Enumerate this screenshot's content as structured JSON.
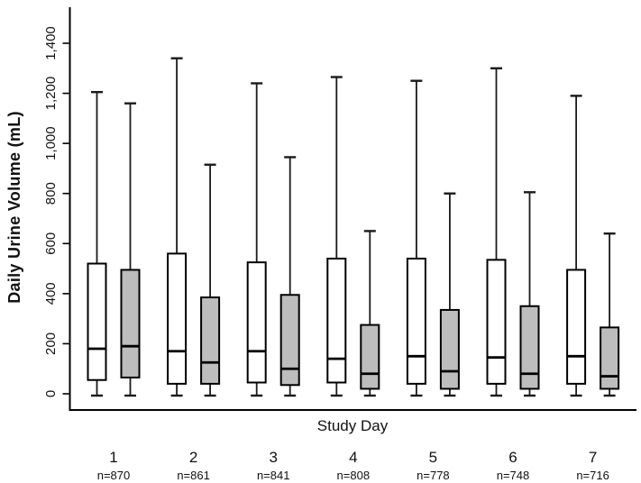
{
  "chart_data": {
    "type": "boxplot",
    "title": "",
    "xlabel": "Study Day",
    "ylabel": "Daily Urine Volume (mL)",
    "ylim": [
      0,
      1400
    ],
    "yticks": [
      0,
      200,
      400,
      600,
      800,
      1000,
      1200,
      1400
    ],
    "ytick_labels": [
      "0",
      "200",
      "400",
      "600",
      "800",
      "1,000",
      "1,200",
      "1,400"
    ],
    "grid": false,
    "legend_position": "none",
    "tick_label_orientation": "rotated-90",
    "categories": [
      "1",
      "2",
      "3",
      "4",
      "5",
      "6",
      "7"
    ],
    "category_sublabels": [
      "n=870",
      "n=861",
      "n=841",
      "n=808",
      "n=778",
      "n=748",
      "n=716"
    ],
    "colors": {
      "open_box_fill": "#ffffff",
      "shaded_box_fill": "#bdbdbd",
      "stroke": "#000000",
      "background": "#ffffff"
    },
    "series": [
      {
        "name": "open-box",
        "fill_key": "open_box_fill",
        "boxes": [
          {
            "category": "1",
            "whisker_low": 0,
            "q1": 55,
            "median": 180,
            "q3": 520,
            "whisker_high": 1205
          },
          {
            "category": "2",
            "whisker_low": 0,
            "q1": 40,
            "median": 170,
            "q3": 560,
            "whisker_high": 1340
          },
          {
            "category": "3",
            "whisker_low": 0,
            "q1": 45,
            "median": 170,
            "q3": 525,
            "whisker_high": 1240
          },
          {
            "category": "4",
            "whisker_low": 0,
            "q1": 45,
            "median": 140,
            "q3": 540,
            "whisker_high": 1265
          },
          {
            "category": "5",
            "whisker_low": 0,
            "q1": 40,
            "median": 150,
            "q3": 540,
            "whisker_high": 1250
          },
          {
            "category": "6",
            "whisker_low": 0,
            "q1": 40,
            "median": 145,
            "q3": 535,
            "whisker_high": 1300
          },
          {
            "category": "7",
            "whisker_low": 0,
            "q1": 40,
            "median": 150,
            "q3": 495,
            "whisker_high": 1190
          }
        ]
      },
      {
        "name": "shaded-box",
        "fill_key": "shaded_box_fill",
        "boxes": [
          {
            "category": "1",
            "whisker_low": 0,
            "q1": 65,
            "median": 190,
            "q3": 495,
            "whisker_high": 1160
          },
          {
            "category": "2",
            "whisker_low": 0,
            "q1": 40,
            "median": 125,
            "q3": 385,
            "whisker_high": 915
          },
          {
            "category": "3",
            "whisker_low": 0,
            "q1": 35,
            "median": 100,
            "q3": 395,
            "whisker_high": 945
          },
          {
            "category": "4",
            "whisker_low": 0,
            "q1": 20,
            "median": 80,
            "q3": 275,
            "whisker_high": 650
          },
          {
            "category": "5",
            "whisker_low": 0,
            "q1": 20,
            "median": 90,
            "q3": 335,
            "whisker_high": 800
          },
          {
            "category": "6",
            "whisker_low": 0,
            "q1": 20,
            "median": 80,
            "q3": 350,
            "whisker_high": 805
          },
          {
            "category": "7",
            "whisker_low": 0,
            "q1": 20,
            "median": 70,
            "q3": 265,
            "whisker_high": 640
          }
        ]
      }
    ]
  }
}
